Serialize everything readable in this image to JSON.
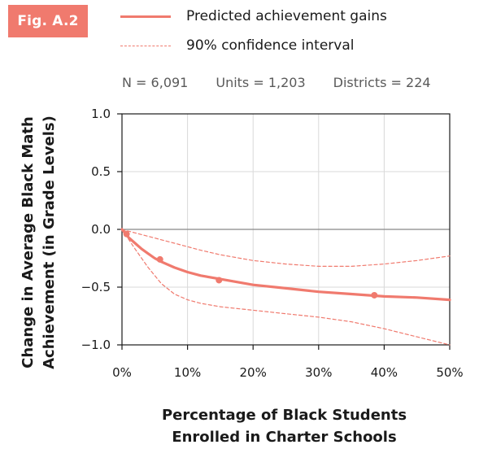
{
  "badge": "Fig. A.2",
  "legend": {
    "solid_label": "Predicted achievement gains",
    "dashed_label": "90% confidence interval"
  },
  "stats": {
    "n": "N = 6,091",
    "units": "Units = 1,203",
    "districts": "Districts = 224"
  },
  "colors": {
    "accent": "#f07a6e",
    "grid": "#d9d9d9",
    "zero_line": "#888888"
  },
  "chart_data": {
    "type": "line",
    "xlabel_lines": [
      "Percentage of Black Students",
      "Enrolled in Charter Schools"
    ],
    "ylabel_lines": [
      "Change in Average Black Math",
      "Achievement (in Grade Levels)"
    ],
    "xlim": [
      0,
      50
    ],
    "ylim": [
      -1.0,
      1.0
    ],
    "x_ticks": [
      0,
      10,
      20,
      30,
      40,
      50
    ],
    "x_tick_labels": [
      "0%",
      "10%",
      "20%",
      "30%",
      "40%",
      "50%"
    ],
    "y_ticks": [
      1.0,
      0.5,
      0.0,
      -0.5,
      -1.0
    ],
    "y_tick_labels": [
      "1.0",
      "0.5",
      "0.0",
      "−0.5",
      "−1.0"
    ],
    "grid": true,
    "series": [
      {
        "name": "Predicted achievement gains",
        "style": "solid",
        "x": [
          0,
          1,
          2,
          3,
          4,
          5,
          6,
          8,
          10,
          12,
          15,
          20,
          25,
          30,
          35,
          40,
          45,
          50
        ],
        "y": [
          0.0,
          -0.07,
          -0.12,
          -0.17,
          -0.21,
          -0.25,
          -0.28,
          -0.33,
          -0.37,
          -0.4,
          -0.43,
          -0.48,
          -0.51,
          -0.54,
          -0.56,
          -0.58,
          -0.59,
          -0.61
        ]
      },
      {
        "name": "90% confidence interval",
        "style": "dashed",
        "x": [
          0,
          2,
          4,
          6,
          8,
          10,
          12,
          15,
          20,
          25,
          30,
          35,
          40,
          45,
          50
        ],
        "y": [
          0.0,
          -0.03,
          -0.06,
          -0.09,
          -0.12,
          -0.15,
          -0.18,
          -0.22,
          -0.27,
          -0.3,
          -0.32,
          -0.32,
          -0.3,
          -0.27,
          -0.23
        ]
      },
      {
        "name": "90% confidence interval",
        "style": "dashed",
        "x": [
          0,
          2,
          4,
          6,
          8,
          10,
          12,
          15,
          20,
          25,
          30,
          35,
          40,
          45,
          50
        ],
        "y": [
          0.0,
          -0.17,
          -0.33,
          -0.47,
          -0.56,
          -0.61,
          -0.64,
          -0.67,
          -0.7,
          -0.73,
          -0.76,
          -0.8,
          -0.86,
          -0.93,
          -1.0
        ]
      }
    ],
    "markers": {
      "x": [
        0.7,
        5.8,
        14.8,
        38.5
      ],
      "y": [
        -0.04,
        -0.26,
        -0.44,
        -0.57
      ]
    }
  }
}
